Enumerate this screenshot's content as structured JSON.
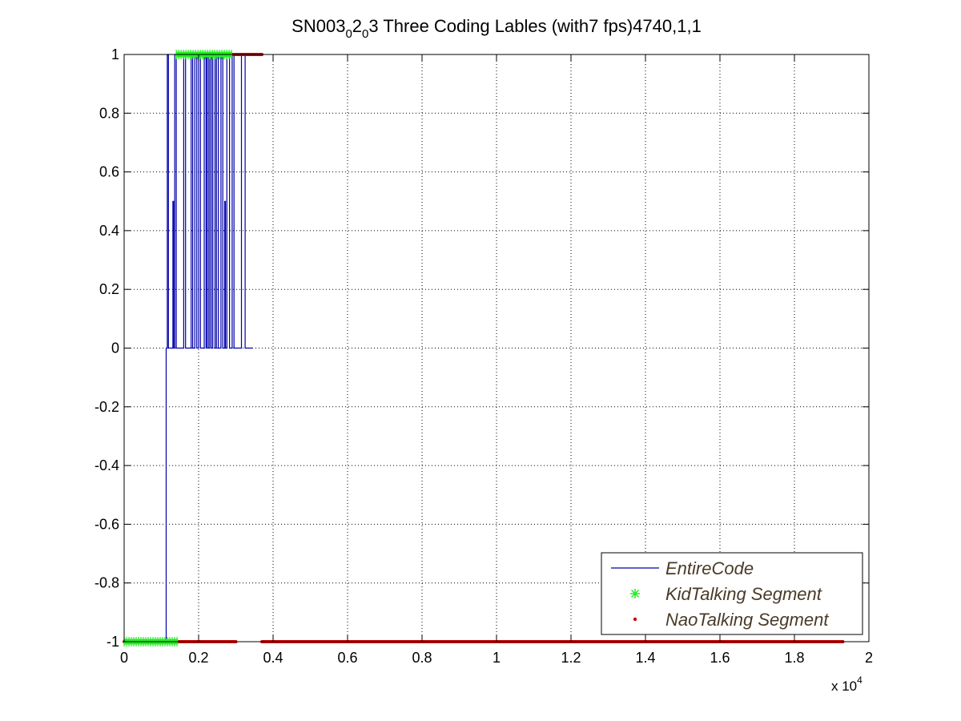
{
  "chart_data": {
    "type": "line",
    "title": {
      "main": "SN003",
      "sub1": "0",
      "mid": "2",
      "sub2": "0",
      "tail": "3 Three Coding Lables (with7 fps)4740,1,1"
    },
    "xlabel": "",
    "ylabel": "",
    "x_multiplier_label": {
      "prefix": "x 10",
      "exponent": "4"
    },
    "xlim": [
      0,
      20000
    ],
    "ylim": [
      -1,
      1
    ],
    "x_ticks": [
      0,
      2000,
      4000,
      6000,
      8000,
      10000,
      12000,
      14000,
      16000,
      18000,
      20000
    ],
    "x_tick_labels": [
      "0",
      "0.2",
      "0.4",
      "0.6",
      "0.8",
      "1",
      "1.2",
      "1.4",
      "1.6",
      "1.8",
      "2"
    ],
    "y_ticks": [
      1,
      0.8,
      0.6,
      0.4,
      0.2,
      0,
      -0.2,
      -0.4,
      -0.6,
      -0.8,
      -1
    ],
    "y_tick_labels": [
      "1",
      "0.8",
      "0.6",
      "0.4",
      "0.2",
      "0",
      "-0.2",
      "-0.4",
      "-0.6",
      "-0.8",
      "-1"
    ],
    "grid": true,
    "legend_position": "bottom-right",
    "series": [
      {
        "name": "EntireCode",
        "style": "line",
        "color": "#0000aa",
        "points": [
          [
            0,
            -1
          ],
          [
            1100,
            -1
          ],
          [
            1130,
            -1
          ],
          [
            1130,
            0
          ],
          [
            1160,
            0
          ],
          [
            1160,
            1
          ],
          [
            1190,
            1
          ],
          [
            1190,
            0
          ],
          [
            1310,
            0
          ],
          [
            1310,
            0.5
          ],
          [
            1330,
            0.5
          ],
          [
            1330,
            0
          ],
          [
            1360,
            0
          ],
          [
            1360,
            1
          ],
          [
            1400,
            1
          ],
          [
            1400,
            0
          ],
          [
            1600,
            0
          ],
          [
            1600,
            1
          ],
          [
            1650,
            1
          ],
          [
            1650,
            0
          ],
          [
            1800,
            0
          ],
          [
            1800,
            1
          ],
          [
            1840,
            1
          ],
          [
            1840,
            0
          ],
          [
            1900,
            0
          ],
          [
            1900,
            1
          ],
          [
            1950,
            1
          ],
          [
            1950,
            0
          ],
          [
            2000,
            0
          ],
          [
            2000,
            1
          ],
          [
            2050,
            1
          ],
          [
            2050,
            0
          ],
          [
            2150,
            0
          ],
          [
            2150,
            1
          ],
          [
            2200,
            1
          ],
          [
            2200,
            0
          ],
          [
            2220,
            0
          ],
          [
            2220,
            1
          ],
          [
            2260,
            1
          ],
          [
            2260,
            0
          ],
          [
            2300,
            0
          ],
          [
            2300,
            1
          ],
          [
            2340,
            1
          ],
          [
            2340,
            0
          ],
          [
            2380,
            0
          ],
          [
            2380,
            1
          ],
          [
            2440,
            1
          ],
          [
            2440,
            0
          ],
          [
            2480,
            0
          ],
          [
            2480,
            1
          ],
          [
            2530,
            1
          ],
          [
            2530,
            0
          ],
          [
            2600,
            0
          ],
          [
            2600,
            1
          ],
          [
            2650,
            1
          ],
          [
            2650,
            0
          ],
          [
            2700,
            0
          ],
          [
            2700,
            0.5
          ],
          [
            2720,
            0.5
          ],
          [
            2720,
            0
          ],
          [
            2760,
            0
          ],
          [
            2760,
            1
          ],
          [
            2830,
            1
          ],
          [
            2830,
            0
          ],
          [
            2900,
            0
          ],
          [
            2900,
            1
          ],
          [
            2950,
            1
          ],
          [
            2950,
            0
          ],
          [
            3150,
            0
          ],
          [
            3150,
            1
          ],
          [
            3250,
            1
          ],
          [
            3250,
            0
          ],
          [
            3450,
            0
          ]
        ]
      },
      {
        "name": "KidTalking Segment",
        "style": "marker-star",
        "color": "#22ee22",
        "segments": [
          {
            "x_from": 0,
            "x_to": 1450,
            "y": -1
          },
          {
            "x_from": 1400,
            "x_to": 2900,
            "y": 1
          }
        ]
      },
      {
        "name": "NaoTalking Segment",
        "style": "marker-dot",
        "color": "#cc0000",
        "segments": [
          {
            "x_from": 0,
            "x_to": 3000,
            "y": -1
          },
          {
            "x_from": 3700,
            "x_to": 19300,
            "y": -1
          },
          {
            "x_from": 2900,
            "x_to": 3700,
            "y": 1
          }
        ]
      }
    ]
  }
}
